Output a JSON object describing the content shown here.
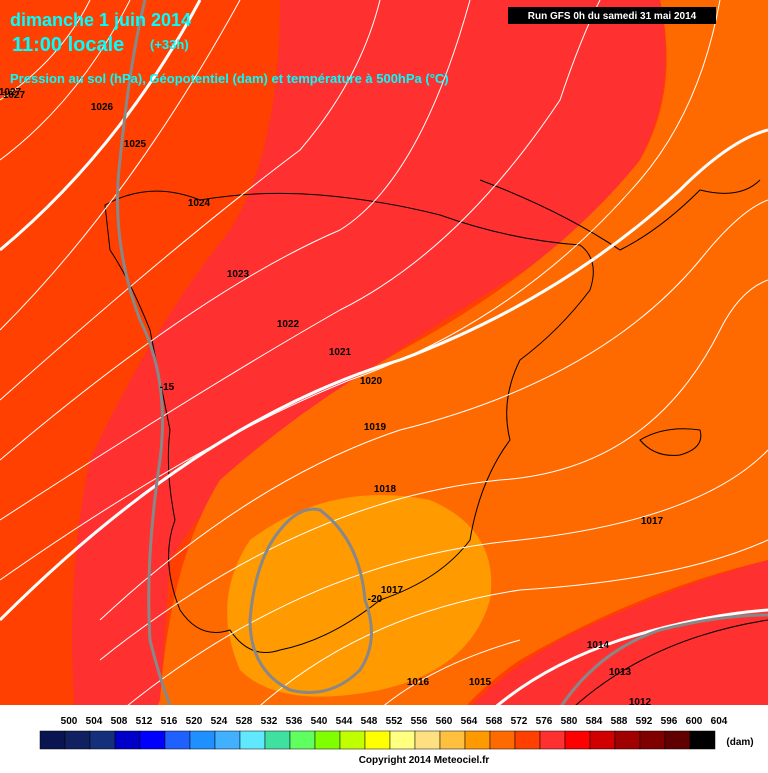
{
  "header": {
    "title": "dimanche 1 juin 2014",
    "time": "11:00 locale",
    "lead": "(+33h)",
    "description": "Pression au sol (hPa), Géopotentiel (dam) et température à 500hPa (°C)",
    "run": "Run GFS 0h du samedi 31 mai 2014"
  },
  "isobar_labels": [
    1027,
    1027,
    1026,
    1025,
    1024,
    1023,
    1022,
    1021,
    1020,
    1019,
    1018,
    1017,
    1017,
    1016,
    1015,
    1014,
    1013,
    1012
  ],
  "temperature_labels": [
    -15,
    -20
  ],
  "legend": {
    "values": [
      500,
      504,
      508,
      512,
      516,
      520,
      524,
      528,
      532,
      536,
      540,
      544,
      548,
      552,
      556,
      560,
      564,
      568,
      572,
      576,
      580,
      584,
      588,
      592,
      596,
      600,
      604
    ],
    "colors": [
      "#0a1450",
      "#102060",
      "#15307a",
      "#0000c8",
      "#0000ff",
      "#2060ff",
      "#1e90ff",
      "#40b0ff",
      "#60e8ff",
      "#40e0a0",
      "#60ff60",
      "#80ff00",
      "#c0ff00",
      "#ffff00",
      "#ffff80",
      "#ffe080",
      "#ffc040",
      "#ff9900",
      "#ff6a00",
      "#ff4000",
      "#ff3030",
      "#ff0000",
      "#d00000",
      "#a00000",
      "#800000",
      "#600000",
      "#000000"
    ],
    "unit": "(dam)"
  },
  "copyright": "Copyright 2014 Meteociel.fr"
}
